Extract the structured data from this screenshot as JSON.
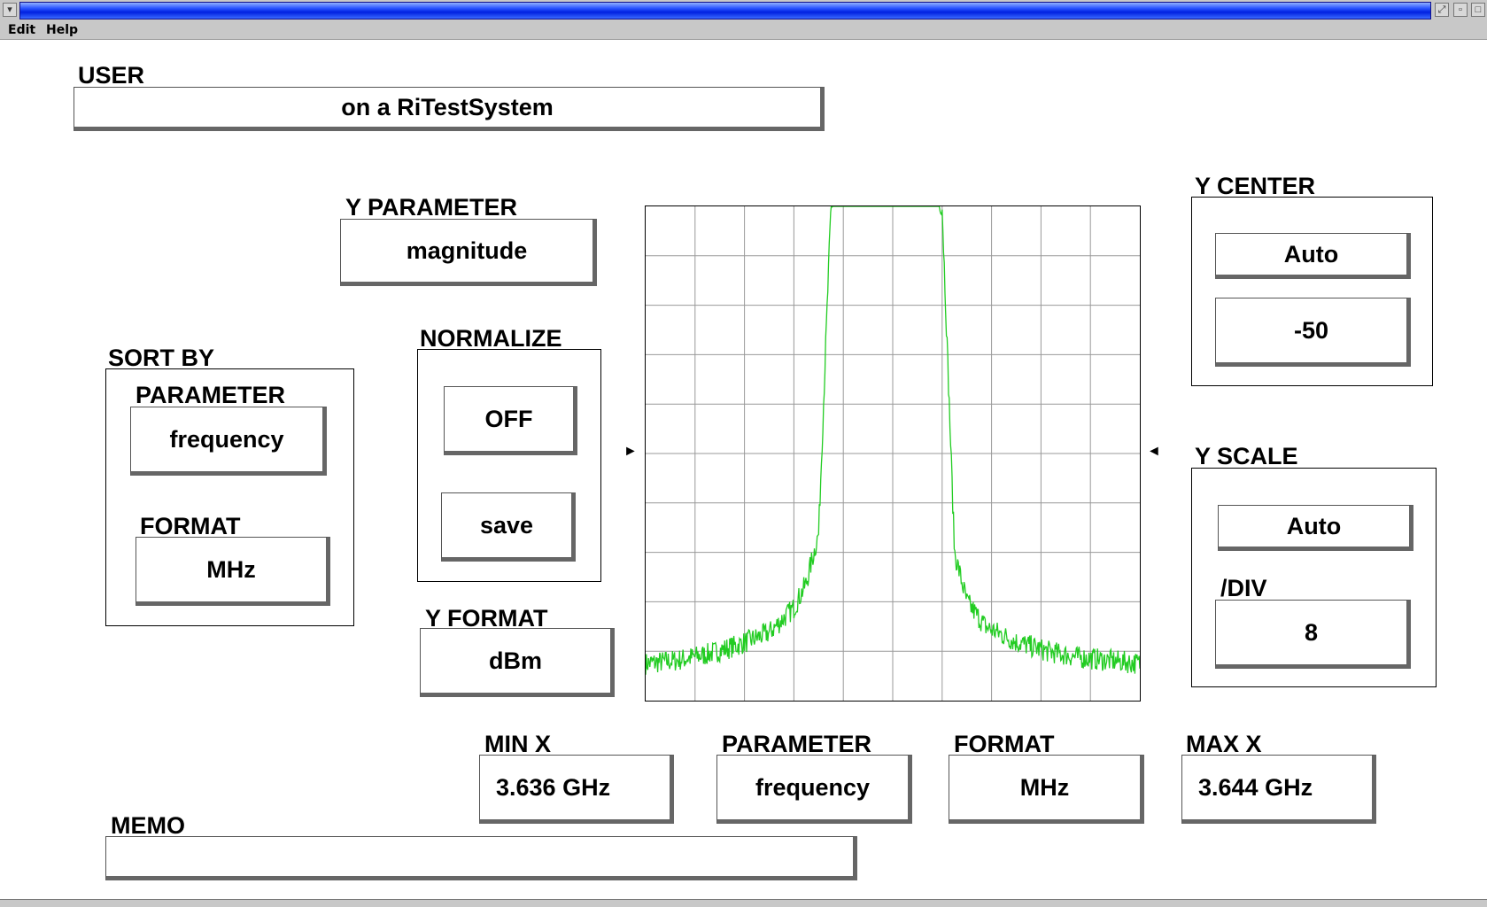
{
  "menu": {
    "edit": "Edit",
    "help": "Help"
  },
  "user": {
    "label": "USER",
    "value": "on a RiTestSystem"
  },
  "y_parameter": {
    "label": "Y PARAMETER",
    "value": "magnitude"
  },
  "sort_by": {
    "label": "SORT BY",
    "parameter_label": "PARAMETER",
    "parameter_value": "frequency",
    "format_label": "FORMAT",
    "format_value": "MHz"
  },
  "normalize": {
    "label": "NORMALIZE",
    "off": "OFF",
    "save": "save"
  },
  "y_format": {
    "label": "Y FORMAT",
    "value": "dBm"
  },
  "y_center": {
    "label": "Y CENTER",
    "mode": "Auto",
    "value": "-50"
  },
  "y_scale": {
    "label": "Y SCALE",
    "mode": "Auto",
    "div_label": "/DIV",
    "div_value": "8"
  },
  "x_axis": {
    "min_label": "MIN X",
    "min_value": "3.636 GHz",
    "param_label": "PARAMETER",
    "param_value": "frequency",
    "format_label": "FORMAT",
    "format_value": "MHz",
    "max_label": "MAX X",
    "max_value": "3.644 GHz"
  },
  "memo": {
    "label": "MEMO",
    "value": ""
  },
  "colors": {
    "trace": "#22cc22",
    "grid": "#999999"
  },
  "chart_data": {
    "type": "line",
    "x_min_mhz": 3636,
    "x_max_mhz": 3644,
    "y_center_dbm": -50,
    "y_per_div_db": 8,
    "divisions": 10,
    "grid": true,
    "series": [
      {
        "x": [
          3636.0,
          3636.5,
          3637.0,
          3637.5,
          3638.0,
          3638.4,
          3638.6,
          3638.8,
          3639.0,
          3639.2,
          3639.5,
          3640.0,
          3640.5,
          3640.8,
          3641.0,
          3641.2,
          3641.5,
          3642.0,
          3642.5,
          3643.0,
          3643.5,
          3644.0
        ],
        "y": [
          -84,
          -83.5,
          -82.5,
          -81,
          -79,
          -75,
          -71,
          -63,
          -10,
          -5,
          -4.5,
          -4.5,
          -5,
          -10,
          -66,
          -74,
          -78,
          -80.5,
          -82,
          -83,
          -83.5,
          -84
        ]
      }
    ]
  }
}
